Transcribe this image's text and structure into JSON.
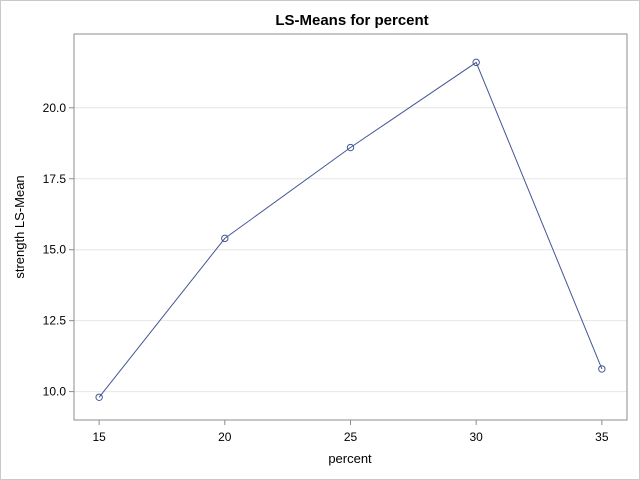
{
  "chart_data": {
    "type": "line",
    "title": "LS-Means for percent",
    "xlabel": "percent",
    "ylabel": "strength LS-Mean",
    "x": [
      15,
      20,
      25,
      30,
      35
    ],
    "values": [
      9.8,
      15.4,
      18.6,
      21.6,
      10.8
    ],
    "x_ticks": [
      "15",
      "20",
      "25",
      "30",
      "35"
    ],
    "y_ticks": [
      "10.0",
      "12.5",
      "15.0",
      "17.5",
      "20.0"
    ],
    "xlim": [
      14.0,
      36.0
    ],
    "ylim": [
      9.0,
      22.6
    ],
    "grid": "horizontal",
    "colors": {
      "series": "#445694",
      "grid": "#e6e6e6",
      "axis": "#8c8c8c"
    }
  }
}
